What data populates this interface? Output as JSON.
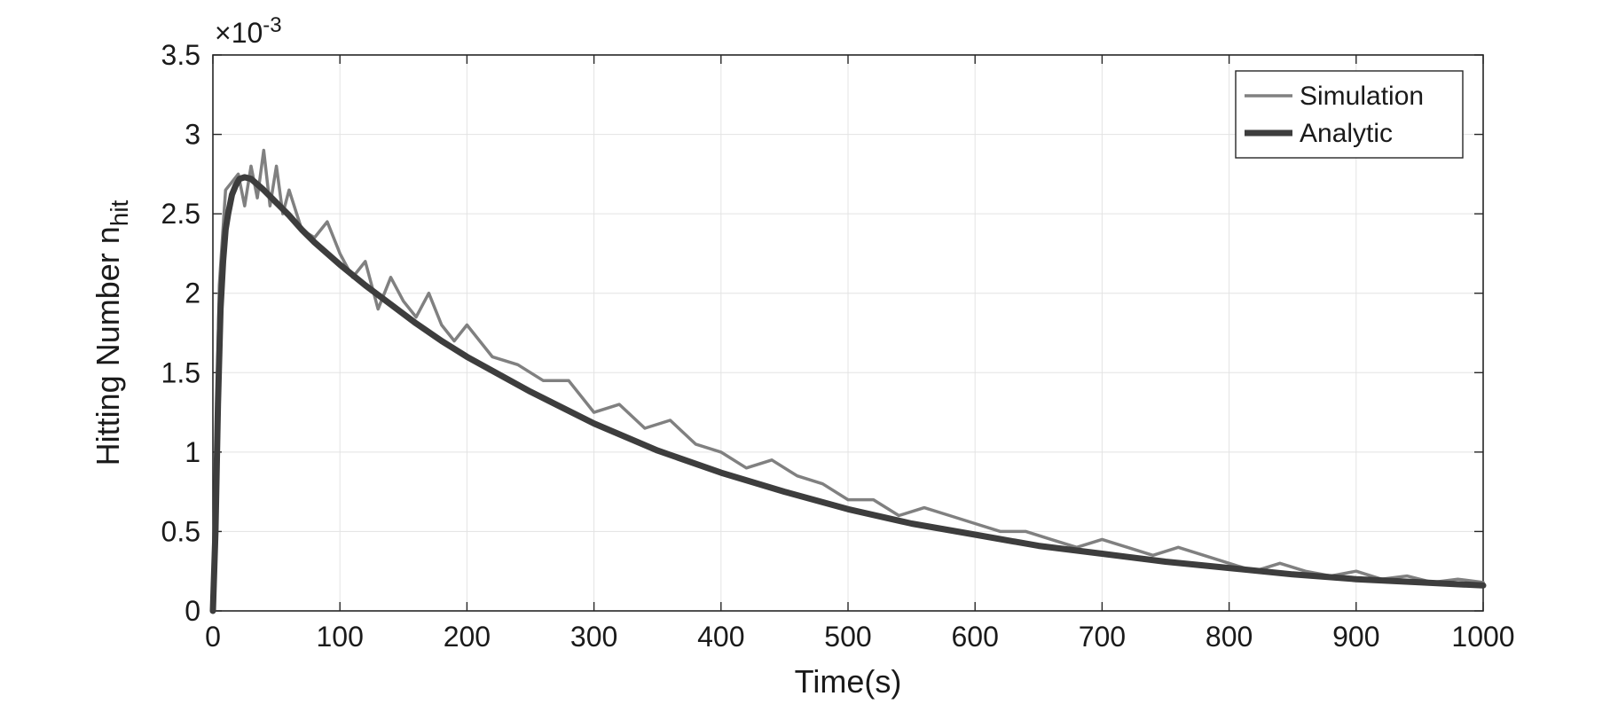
{
  "chart_data": {
    "type": "line",
    "title": "",
    "xlabel": "Time(s)",
    "ylabel_main": "Hitting Number n",
    "ylabel_sub": "hit",
    "exponent_prefix": "×10",
    "exponent_power": "-3",
    "xlim": [
      0,
      1000
    ],
    "ylim": [
      0,
      0.0035
    ],
    "grid": true,
    "legend_position": "top-right",
    "x_ticks": [
      0,
      100,
      200,
      300,
      400,
      500,
      600,
      700,
      800,
      900,
      1000
    ],
    "x_tick_labels": [
      "0",
      "100",
      "200",
      "300",
      "400",
      "500",
      "600",
      "700",
      "800",
      "900",
      "1000"
    ],
    "y_ticks": [
      0,
      0.0005,
      0.001,
      0.0015,
      0.002,
      0.0025,
      0.003,
      0.0035
    ],
    "y_tick_labels": [
      "0",
      "0.5",
      "1",
      "1.5",
      "2",
      "2.5",
      "3",
      "3.5"
    ],
    "series": [
      {
        "name": "Simulation",
        "color": "#808080",
        "x": [
          0,
          5,
          10,
          15,
          20,
          25,
          30,
          35,
          40,
          45,
          50,
          55,
          60,
          70,
          80,
          90,
          100,
          110,
          120,
          130,
          140,
          150,
          160,
          170,
          180,
          190,
          200,
          220,
          240,
          260,
          280,
          300,
          320,
          340,
          360,
          380,
          400,
          420,
          440,
          460,
          480,
          500,
          520,
          540,
          560,
          580,
          600,
          620,
          640,
          660,
          680,
          700,
          720,
          740,
          760,
          780,
          800,
          820,
          840,
          860,
          880,
          900,
          920,
          940,
          960,
          980,
          1000
        ],
        "y": [
          0,
          0.00205,
          0.00265,
          0.0027,
          0.00275,
          0.00255,
          0.0028,
          0.0026,
          0.0029,
          0.00255,
          0.0028,
          0.0025,
          0.00265,
          0.0024,
          0.00235,
          0.00245,
          0.00225,
          0.0021,
          0.0022,
          0.0019,
          0.0021,
          0.00195,
          0.00185,
          0.002,
          0.0018,
          0.0017,
          0.0018,
          0.0016,
          0.00155,
          0.00145,
          0.00145,
          0.00125,
          0.0013,
          0.00115,
          0.0012,
          0.00105,
          0.001,
          0.0009,
          0.00095,
          0.00085,
          0.0008,
          0.0007,
          0.0007,
          0.0006,
          0.00065,
          0.0006,
          0.00055,
          0.0005,
          0.0005,
          0.00045,
          0.0004,
          0.00045,
          0.0004,
          0.00035,
          0.0004,
          0.00035,
          0.0003,
          0.00025,
          0.0003,
          0.00025,
          0.00022,
          0.00025,
          0.0002,
          0.00022,
          0.00018,
          0.0002,
          0.00018
        ]
      },
      {
        "name": "Analytic",
        "color": "#3d3d3d",
        "x": [
          0,
          2,
          4,
          6,
          8,
          10,
          12,
          15,
          18,
          21,
          25,
          30,
          40,
          50,
          60,
          70,
          80,
          100,
          120,
          140,
          160,
          180,
          200,
          250,
          300,
          350,
          400,
          450,
          500,
          550,
          600,
          650,
          700,
          750,
          800,
          850,
          900,
          950,
          1000
        ],
        "y": [
          0,
          0.0005,
          0.0013,
          0.0019,
          0.0022,
          0.0024,
          0.0025,
          0.00262,
          0.00268,
          0.00272,
          0.00273,
          0.00272,
          0.00265,
          0.00257,
          0.00249,
          0.0024,
          0.00232,
          0.00218,
          0.00205,
          0.00193,
          0.00181,
          0.0017,
          0.0016,
          0.00138,
          0.00118,
          0.00101,
          0.00087,
          0.00075,
          0.00064,
          0.00055,
          0.00048,
          0.00041,
          0.00036,
          0.00031,
          0.00027,
          0.00023,
          0.0002,
          0.00018,
          0.00016
        ]
      }
    ]
  }
}
